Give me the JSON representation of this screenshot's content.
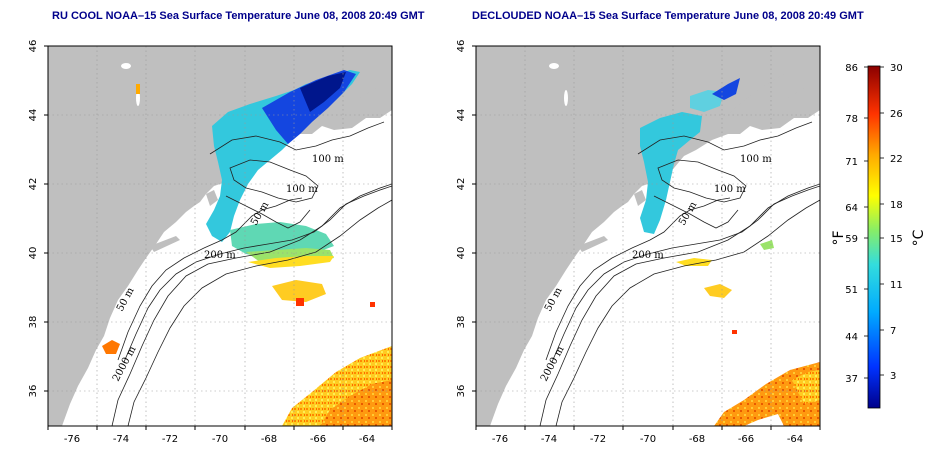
{
  "maps": [
    {
      "title": "RU COOL NOAA–15 Sea Surface Temperature June 08, 2008 20:49 GMT",
      "x_ticks": [
        "-76",
        "-74",
        "-72",
        "-70",
        "-68",
        "-66",
        "-64"
      ],
      "y_ticks": [
        "36",
        "38",
        "40",
        "42",
        "44",
        "46"
      ],
      "contour_labels": [
        "100 m",
        "100 m",
        "50 m",
        "200 m",
        "50 m",
        "2000 m"
      ]
    },
    {
      "title": "DECLOUDED NOAA–15 Sea Surface Temperature June 08, 2008 20:49 GMT",
      "x_ticks": [
        "-76",
        "-74",
        "-72",
        "-70",
        "-68",
        "-66",
        "-64"
      ],
      "y_ticks": [
        "36",
        "38",
        "40",
        "42",
        "44",
        "46"
      ],
      "contour_labels": [
        "100 m",
        "100 m",
        "50 m",
        "200 m",
        "50 m",
        "2000 m"
      ]
    }
  ],
  "colorbar": {
    "fahrenheit_unit": "°F",
    "celsius_unit": "°C",
    "fahrenheit_ticks": [
      "86",
      "78",
      "71",
      "64",
      "59",
      "51",
      "44",
      "37"
    ],
    "celsius_ticks": [
      "30",
      "26",
      "22",
      "18",
      "15",
      "11",
      "7",
      "3"
    ],
    "colors": [
      "#00008b",
      "#0033ff",
      "#00aaff",
      "#33dddd",
      "#88ee66",
      "#ffff00",
      "#ffaa00",
      "#ff3300",
      "#8b0000"
    ]
  },
  "chart_data": {
    "type": "heatmap",
    "variable": "Sea Surface Temperature",
    "xlim": [
      -77,
      -63
    ],
    "ylim": [
      35,
      46
    ],
    "colorbar_range_celsius": [
      0,
      30
    ],
    "colorbar_range_fahrenheit": [
      32,
      86
    ]
  }
}
